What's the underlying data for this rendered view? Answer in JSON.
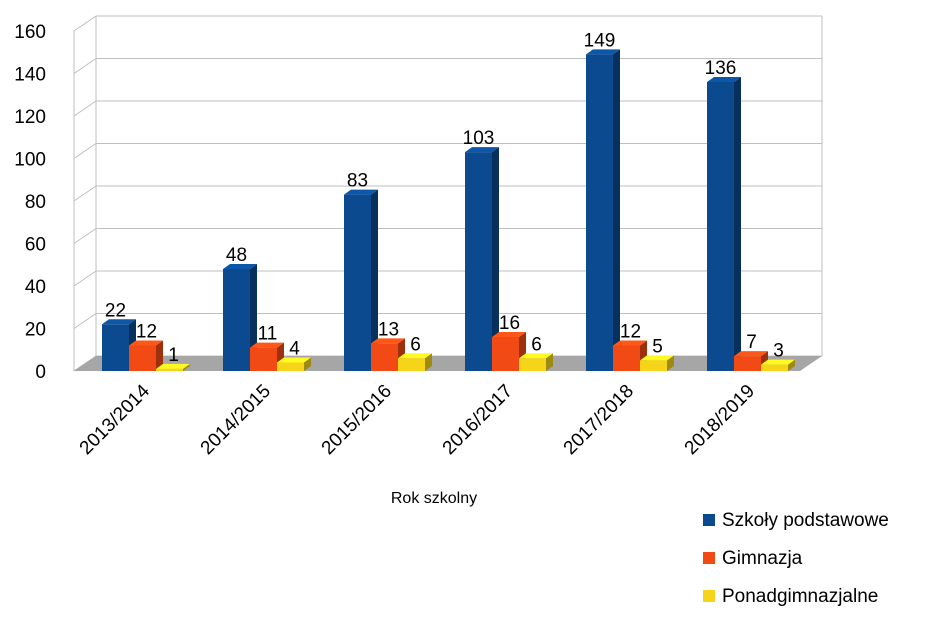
{
  "chart_data": {
    "type": "bar",
    "title": "",
    "xlabel": "Rok szkolny",
    "ylabel": "",
    "ylim": [
      0,
      160
    ],
    "yticks": [
      "0",
      "20",
      "40",
      "60",
      "80",
      "100",
      "120",
      "140",
      "160"
    ],
    "categories": [
      "2013/2014",
      "2014/2015",
      "2015/2016",
      "2016/2017",
      "2017/2018",
      "2018/2019"
    ],
    "grid": true,
    "three_d": true,
    "legend_position": "bottom-right",
    "series": [
      {
        "name": "Szkoły podstawowe",
        "values": [
          22,
          48,
          83,
          103,
          149,
          136
        ],
        "color": "#0B4A8E"
      },
      {
        "name": "Gimnazja",
        "values": [
          12,
          11,
          13,
          16,
          12,
          7
        ],
        "color": "#F24A14"
      },
      {
        "name": "Ponadgimnazjalne",
        "values": [
          1,
          4,
          6,
          6,
          5,
          3
        ],
        "color": "#F5D41A"
      }
    ]
  }
}
